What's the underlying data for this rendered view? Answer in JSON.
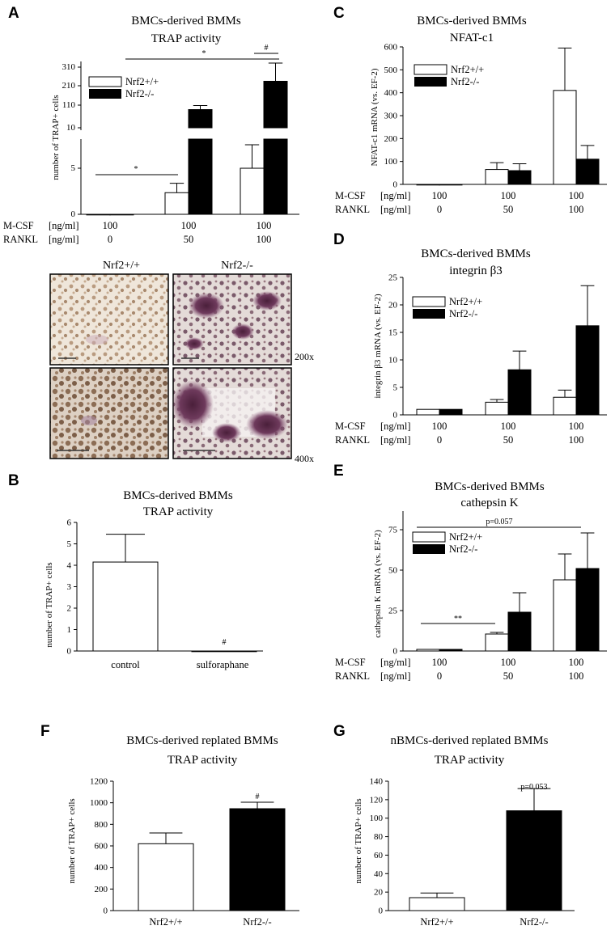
{
  "panel_A": {
    "label": "A",
    "chart_data": {
      "type": "bar",
      "title": [
        "BMCs-derived BMMs",
        "TRAP activity"
      ],
      "ylabel": "number of TRAP+ cells",
      "condition_rows": [
        {
          "label": "M-CSF",
          "unit": "[ng/ml]",
          "values": [
            "100",
            "100",
            "100"
          ]
        },
        {
          "label": "RANKL",
          "unit": "[ng/ml]",
          "values": [
            "0",
            "50",
            "100"
          ]
        }
      ],
      "lower_axis": {
        "ylim": [
          0,
          8
        ],
        "ticks": [
          "0",
          "5"
        ]
      },
      "upper_axis": {
        "ylim": [
          0,
          330
        ],
        "ticks": [
          "10",
          "110",
          "210",
          "310"
        ]
      },
      "series": [
        {
          "name": "Nrf2+/+",
          "fill": "white",
          "values": [
            0,
            2.3,
            4.9
          ],
          "err": [
            0,
            1.0,
            2.5
          ]
        },
        {
          "name": "Nrf2-/-",
          "fill": "black",
          "values": [
            0,
            100,
            240
          ],
          "err": [
            0,
            20,
            90
          ]
        }
      ],
      "annotations": [
        "*",
        "*",
        "#"
      ]
    },
    "micrographs": {
      "col_labels": [
        "Nrf2+/+",
        "Nrf2-/-"
      ],
      "magnifications": [
        "200x",
        "400x"
      ]
    }
  },
  "panel_B": {
    "label": "B",
    "chart_data": {
      "type": "bar",
      "title": [
        "BMCs-derived BMMs",
        "TRAP activity"
      ],
      "ylabel": "number of TRAP+ cells",
      "categories": [
        "control",
        "sulforaphane"
      ],
      "ylim": [
        0,
        6
      ],
      "yticks": [
        "0",
        "1",
        "2",
        "3",
        "4",
        "5",
        "6"
      ],
      "values": [
        4.15,
        0
      ],
      "err": [
        1.3,
        0
      ],
      "fills": [
        "white",
        "white"
      ],
      "annotations": [
        "#"
      ]
    }
  },
  "panel_C": {
    "label": "C",
    "chart_data": {
      "type": "bar",
      "title": [
        "BMCs-derived BMMs",
        "NFAT-c1"
      ],
      "ylabel": "NFAT-c1 mRNA (vs. EF-2)",
      "ylim": [
        0,
        600
      ],
      "yticks": [
        "0",
        "100",
        "200",
        "300",
        "400",
        "500",
        "600"
      ],
      "condition_rows": [
        {
          "label": "M-CSF",
          "unit": "[ng/ml]",
          "values": [
            "100",
            "100",
            "100"
          ]
        },
        {
          "label": "RANKL",
          "unit": "[ng/ml]",
          "values": [
            "0",
            "50",
            "100"
          ]
        }
      ],
      "series": [
        {
          "name": "Nrf2+/+",
          "fill": "white",
          "values": [
            0,
            65,
            410
          ],
          "err": [
            0,
            30,
            185
          ]
        },
        {
          "name": "Nrf2-/-",
          "fill": "black",
          "values": [
            0,
            60,
            110
          ],
          "err": [
            0,
            30,
            60
          ]
        }
      ]
    }
  },
  "panel_D": {
    "label": "D",
    "chart_data": {
      "type": "bar",
      "title": [
        "BMCs-derived BMMs",
        "integrin β3"
      ],
      "ylabel": "integrin β3 mRNA (vs. EF-2)",
      "ylim": [
        0,
        25
      ],
      "yticks": [
        "0",
        "5",
        "10",
        "15",
        "20",
        "25"
      ],
      "condition_rows": [
        {
          "label": "M-CSF",
          "unit": "[ng/ml]",
          "values": [
            "100",
            "100",
            "100"
          ]
        },
        {
          "label": "RANKL",
          "unit": "[ng/ml]",
          "values": [
            "0",
            "50",
            "100"
          ]
        }
      ],
      "series": [
        {
          "name": "Nrf2+/+",
          "fill": "white",
          "values": [
            1,
            2.3,
            3.2
          ],
          "err": [
            0,
            0.5,
            1.3
          ]
        },
        {
          "name": "Nrf2-/-",
          "fill": "black",
          "values": [
            1,
            8.2,
            16.2
          ],
          "err": [
            0,
            3.4,
            7.3
          ]
        }
      ]
    }
  },
  "panel_E": {
    "label": "E",
    "chart_data": {
      "type": "bar",
      "title": [
        "BMCs-derived BMMs",
        "cathepsin K"
      ],
      "ylabel": "cathepsin K mRNA (vs. EF-2)",
      "ylim": [
        0,
        75
      ],
      "yticks": [
        "0",
        "25",
        "50",
        "75"
      ],
      "condition_rows": [
        {
          "label": "M-CSF",
          "unit": "[ng/ml]",
          "values": [
            "100",
            "100",
            "100"
          ]
        },
        {
          "label": "RANKL",
          "unit": "[ng/ml]",
          "values": [
            "0",
            "50",
            "100"
          ]
        }
      ],
      "series": [
        {
          "name": "Nrf2+/+",
          "fill": "white",
          "values": [
            1,
            10.5,
            44
          ],
          "err": [
            0,
            1,
            16
          ]
        },
        {
          "name": "Nrf2-/-",
          "fill": "black",
          "values": [
            1,
            24,
            51
          ],
          "err": [
            0,
            12,
            22
          ]
        }
      ],
      "annotations": [
        "**",
        "p=0.057"
      ]
    }
  },
  "panel_F": {
    "label": "F",
    "chart_data": {
      "type": "bar",
      "title": [
        "BMCs-derived replated BMMs",
        "TRAP activity"
      ],
      "ylabel": "number of TRAP+ cells",
      "categories": [
        "Nrf2+/+",
        "Nrf2-/-"
      ],
      "ylim": [
        0,
        1200
      ],
      "yticks": [
        "0",
        "200",
        "400",
        "600",
        "800",
        "1000",
        "1200"
      ],
      "values": [
        620,
        945
      ],
      "err": [
        100,
        60
      ],
      "fills": [
        "white",
        "black"
      ],
      "annotations": [
        "#"
      ]
    }
  },
  "panel_G": {
    "label": "G",
    "chart_data": {
      "type": "bar",
      "title": [
        "nBMCs-derived replated BMMs",
        "TRAP activity"
      ],
      "ylabel": "number of TRAP+ cells",
      "categories": [
        "Nrf2+/+",
        "Nrf2-/-"
      ],
      "ylim": [
        0,
        140
      ],
      "yticks": [
        "0",
        "20",
        "40",
        "60",
        "80",
        "100",
        "120",
        "140"
      ],
      "values": [
        14,
        108
      ],
      "err": [
        5,
        24
      ],
      "fills": [
        "white",
        "black"
      ],
      "annotations": [
        "p=0.053"
      ]
    }
  },
  "colors": {
    "ink": "#000000",
    "open_bar": "#ffffff",
    "filled_bar": "#000000"
  }
}
